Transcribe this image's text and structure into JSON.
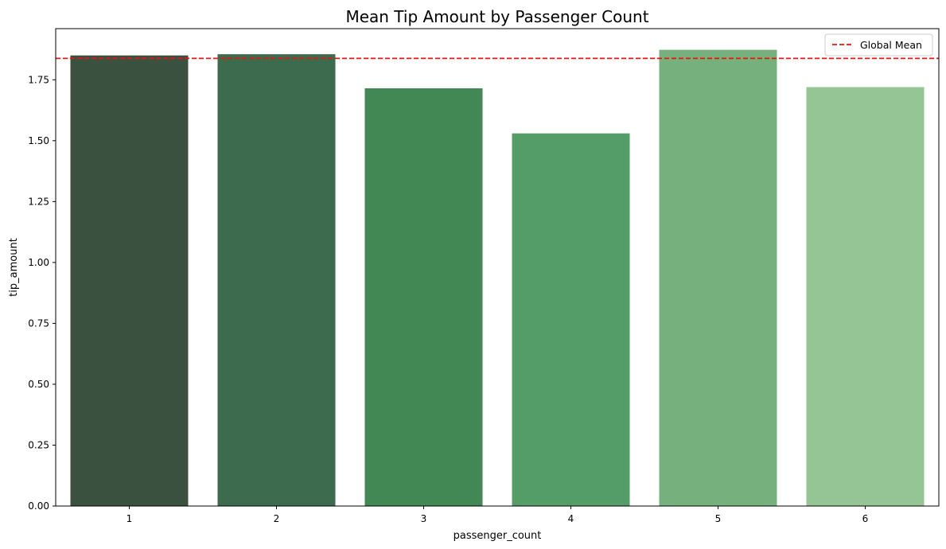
{
  "chart_data": {
    "type": "bar",
    "title": "Mean Tip Amount by Passenger Count",
    "xlabel": "passenger_count",
    "ylabel": "tip_amount",
    "categories": [
      "1",
      "2",
      "3",
      "4",
      "5",
      "6"
    ],
    "values": [
      1.85,
      1.855,
      1.715,
      1.53,
      1.873,
      1.72
    ],
    "bar_colors": [
      "#3a5140",
      "#3c6b4d",
      "#418855",
      "#559d68",
      "#75b07d",
      "#95c595"
    ],
    "ylim": [
      0,
      1.96
    ],
    "yticks": [
      "0.00",
      "0.25",
      "0.50",
      "0.75",
      "1.00",
      "1.25",
      "1.50",
      "1.75"
    ],
    "ytick_values": [
      0,
      0.25,
      0.5,
      0.75,
      1.0,
      1.25,
      1.5,
      1.75
    ],
    "reference_line": {
      "label": "Global Mean",
      "value": 1.838,
      "color": "#e8130f",
      "style": "dashed"
    },
    "legend": {
      "placement": "top-right",
      "entries": [
        "Global Mean"
      ]
    },
    "grid": false
  }
}
